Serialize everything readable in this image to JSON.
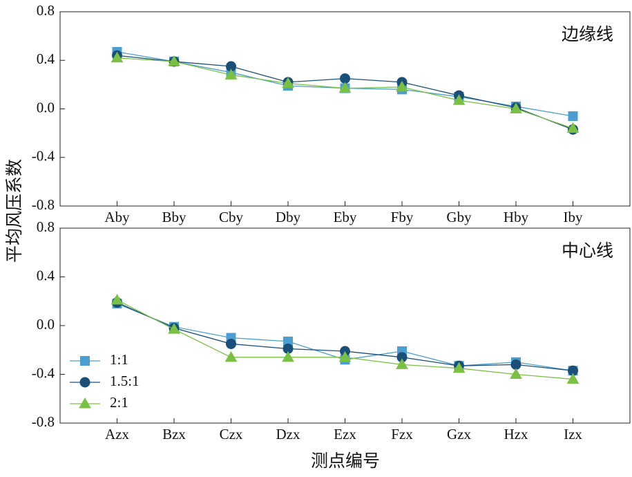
{
  "chart_data": [
    {
      "type": "line",
      "ylabel": "平均风压系数",
      "annotation": "边缘线",
      "categories": [
        "Aby",
        "Bby",
        "Cby",
        "Dby",
        "Eby",
        "Fby",
        "Gby",
        "Hby",
        "Iby"
      ],
      "series": [
        {
          "color": "#4a9fd0",
          "marker": "square",
          "values": [
            0.47,
            0.39,
            0.3,
            0.19,
            0.17,
            0.16,
            0.1,
            0.02,
            -0.06
          ]
        },
        {
          "color": "#1a4f7a",
          "marker": "circle",
          "values": [
            0.44,
            0.39,
            0.35,
            0.22,
            0.25,
            0.22,
            0.11,
            0.01,
            -0.17
          ]
        },
        {
          "color": "#7ac143",
          "marker": "triangle",
          "values": [
            0.42,
            0.39,
            0.28,
            0.21,
            0.17,
            0.18,
            0.07,
            0.0,
            -0.16
          ]
        }
      ],
      "ylim": [
        -0.8,
        0.8
      ],
      "yticks": [
        -0.8,
        -0.4,
        {
          "value": 0,
          "label": "0.0"
        },
        0.4,
        0.8
      ]
    },
    {
      "type": "line",
      "xlabel": "测点编号",
      "annotation": "中心线",
      "legend": "lower left",
      "categories": [
        "Azx",
        "Bzx",
        "Czx",
        "Dzx",
        "Ezx",
        "Fzx",
        "Gzx",
        "Hzx",
        "Izx"
      ],
      "series": [
        {
          "name": "1:1",
          "color": "#4a9fd0",
          "marker": "square",
          "values": [
            0.18,
            -0.01,
            -0.1,
            -0.13,
            -0.28,
            -0.21,
            -0.33,
            -0.3,
            -0.37
          ]
        },
        {
          "name": "1.5:1",
          "color": "#1a4f7a",
          "marker": "circle",
          "values": [
            0.19,
            -0.02,
            -0.15,
            -0.19,
            -0.21,
            -0.26,
            -0.33,
            -0.32,
            -0.37
          ]
        },
        {
          "name": "2:1",
          "color": "#7ac143",
          "marker": "triangle",
          "values": [
            0.21,
            -0.03,
            -0.26,
            -0.26,
            -0.26,
            -0.32,
            -0.35,
            -0.4,
            -0.44
          ]
        }
      ],
      "ylim": [
        -0.8,
        0.8
      ],
      "yticks": [
        -0.8,
        -0.4,
        {
          "value": 0,
          "label": "0.0"
        },
        0.4,
        0.8
      ]
    }
  ]
}
